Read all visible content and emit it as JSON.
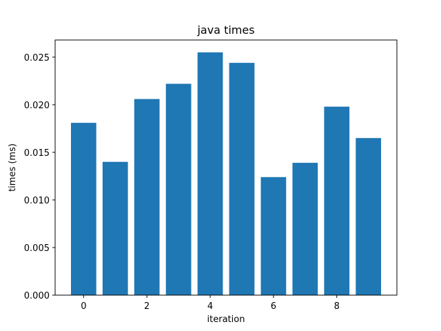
{
  "chart_data": {
    "type": "bar",
    "title": "java times",
    "xlabel": "iteration",
    "ylabel": "times (ms)",
    "x": [
      0,
      1,
      2,
      3,
      4,
      5,
      6,
      7,
      8,
      9
    ],
    "values": [
      0.0181,
      0.014,
      0.0206,
      0.0222,
      0.0255,
      0.0244,
      0.0124,
      0.0139,
      0.0198,
      0.0165
    ],
    "xlim": [
      -0.9,
      9.9
    ],
    "ylim": [
      0,
      0.0268
    ],
    "xticks": [
      0,
      2,
      4,
      6,
      8
    ],
    "yticks": [
      0.0,
      0.005,
      0.01,
      0.015,
      0.02,
      0.025
    ],
    "ytick_labels": [
      "0.000",
      "0.005",
      "0.010",
      "0.015",
      "0.020",
      "0.025"
    ],
    "bar_color": "#1f77b4",
    "grid": false,
    "legend": "none"
  }
}
